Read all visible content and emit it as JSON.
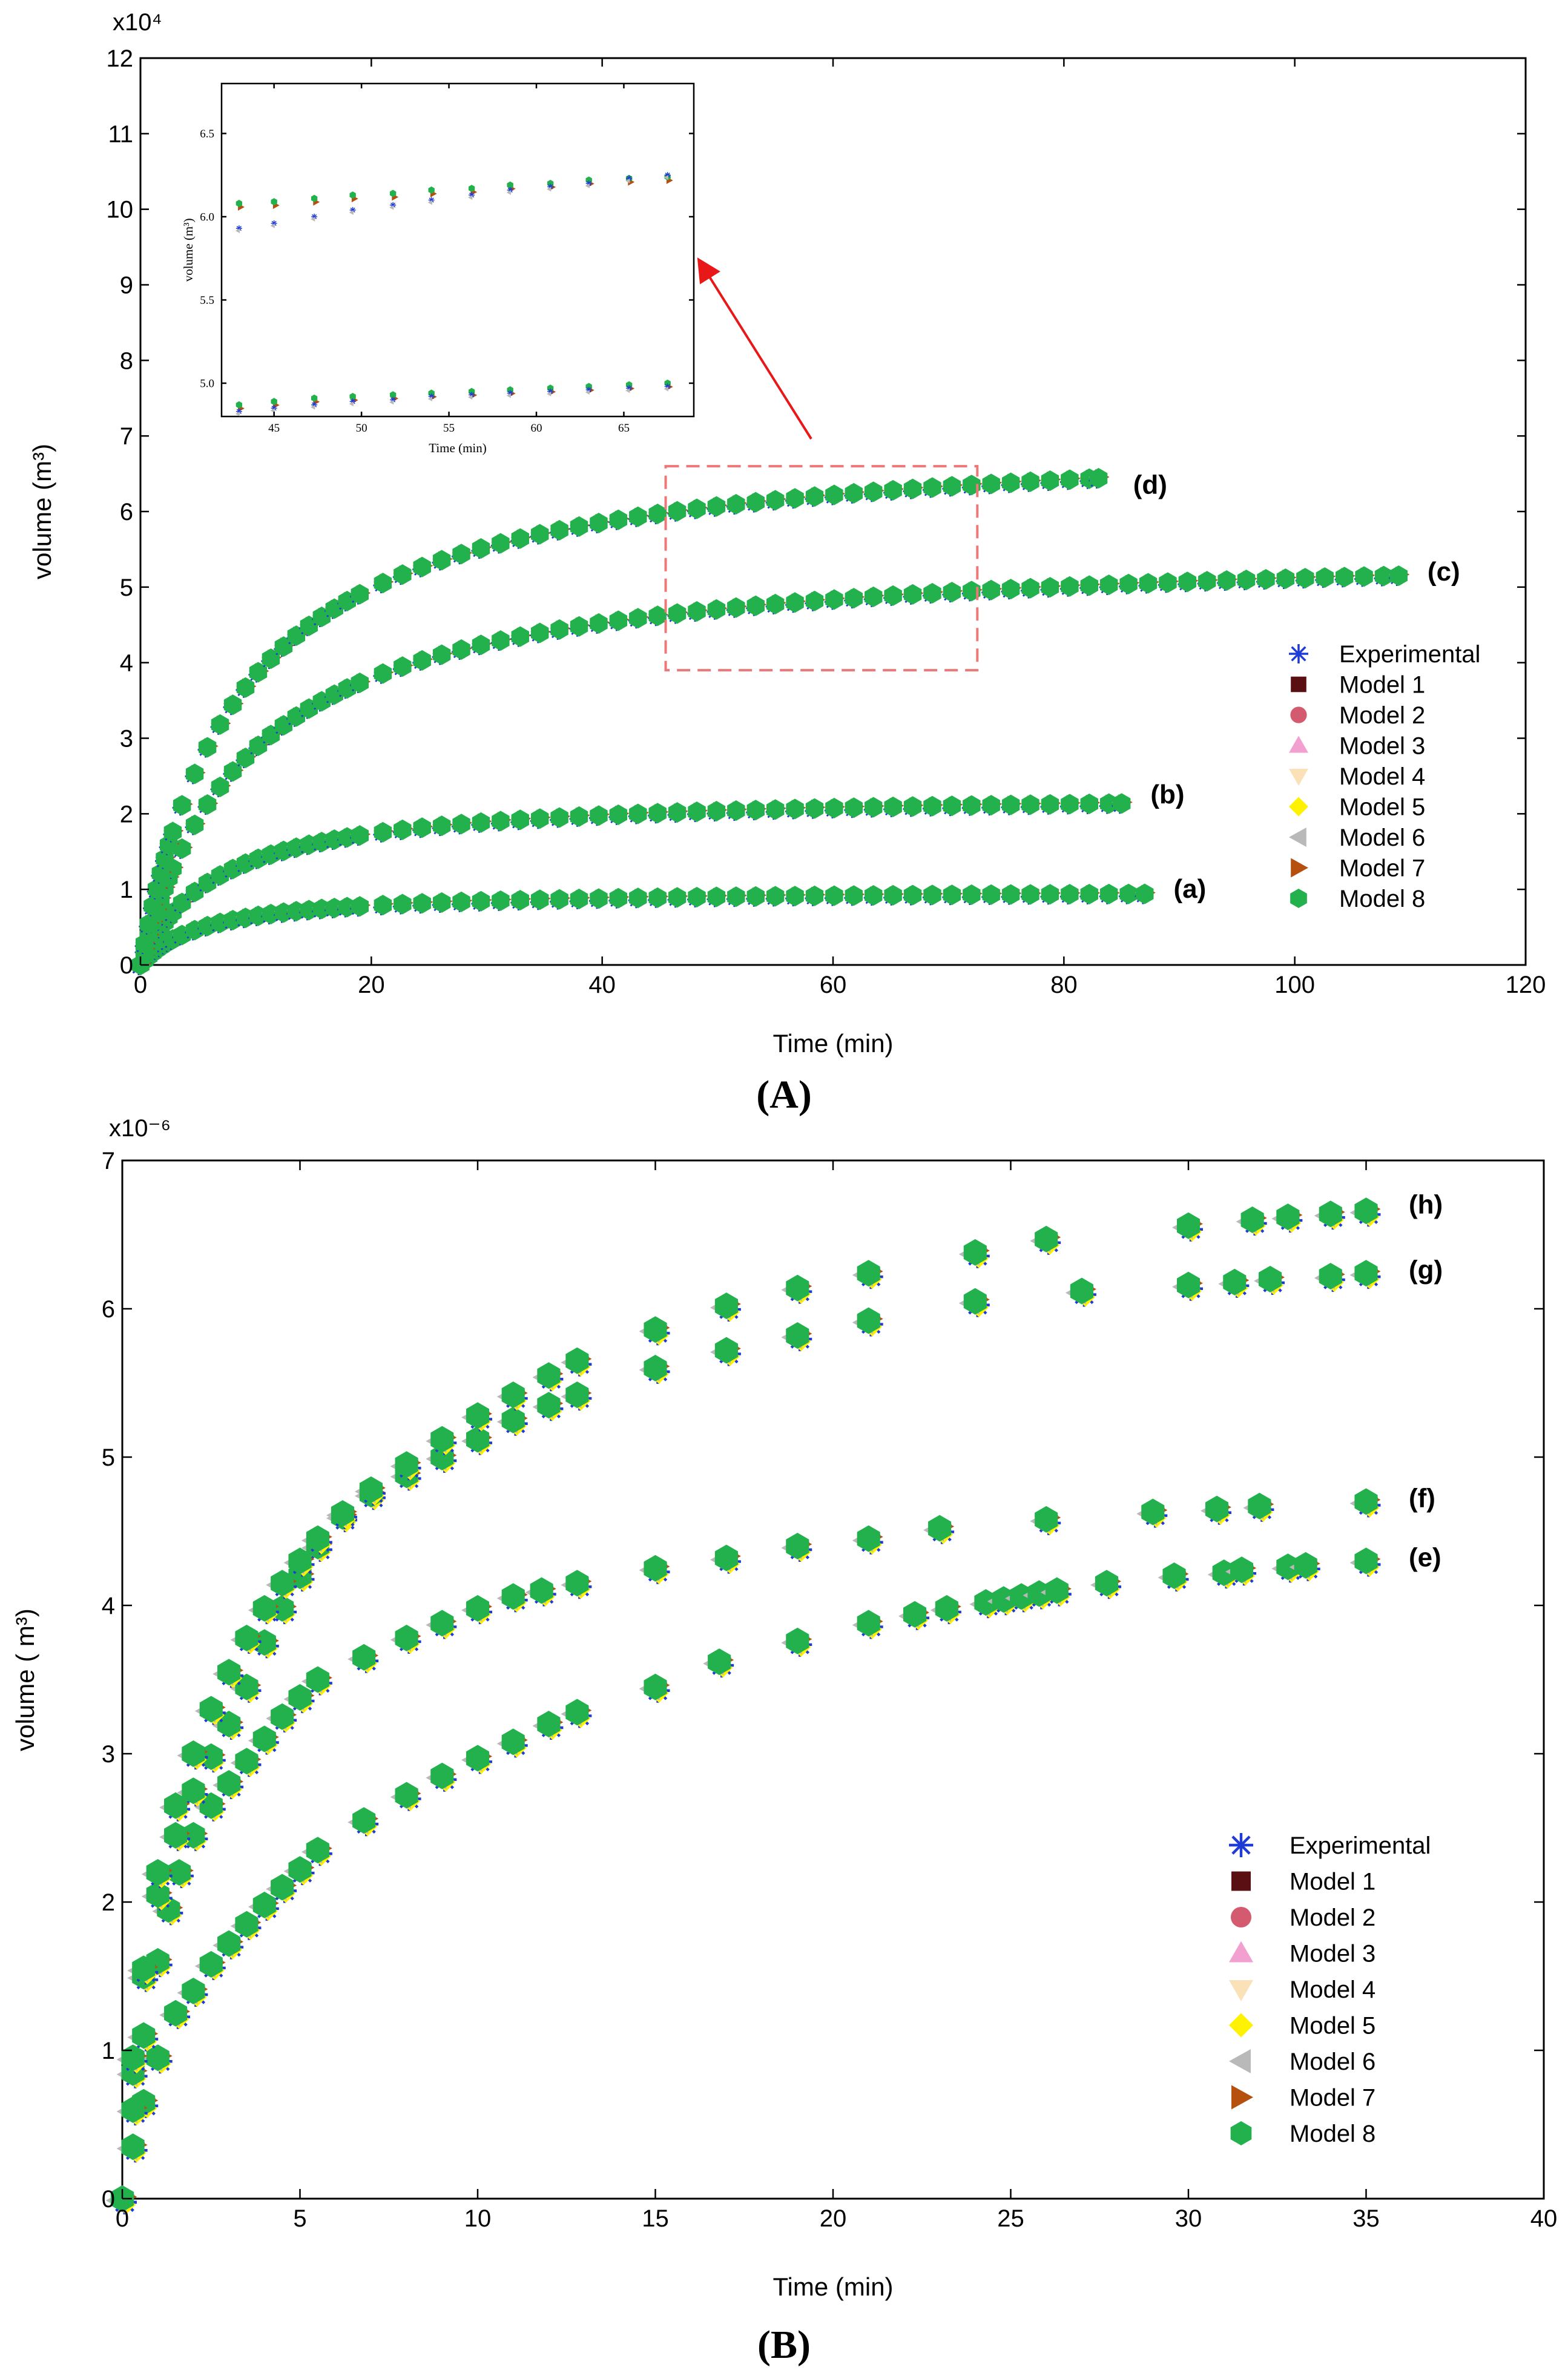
{
  "colors": {
    "experimental": "#1f3bd6",
    "model1": "#5a0f12",
    "model2": "#d45a70",
    "model3": "#f2a0cf",
    "model4": "#fbe1b8",
    "model5": "#fff200",
    "model6": "#b9b9b9",
    "model7": "#b5500f",
    "model8": "#22b14c",
    "zoom_box": "#ee7777",
    "arrow": "#e81818"
  },
  "panels": [
    {
      "panel_label": "(A)",
      "chart_data": {
        "type": "scatter",
        "xlabel": "Time (min)",
        "ylabel": "volume (m³)",
        "y_multiplier": "x10⁴",
        "xlim": [
          0,
          120
        ],
        "ylim": [
          0,
          12
        ],
        "x_ticks": [
          "0",
          "20",
          "40",
          "60",
          "80",
          "100",
          "120"
        ],
        "y_ticks": [
          "0",
          "1",
          "2",
          "3",
          "4",
          "5",
          "6",
          "7",
          "8",
          "9",
          "10",
          "11",
          "12"
        ],
        "legend_position": "right",
        "series_names": [
          "Experimental",
          "Model 1",
          "Model 2",
          "Model 3",
          "Model 4",
          "Model 5",
          "Model 6",
          "Model 7",
          "Model 8"
        ],
        "curves": [
          {
            "label": "(a)",
            "plateau": 1.0,
            "half_time": 5.5,
            "x_max": 87,
            "label_x": 89.5,
            "label_y": 1.0
          },
          {
            "label": "(b)",
            "plateau": 2.3,
            "half_time": 6.5,
            "x_max": 85,
            "label_x": 87.5,
            "label_y": 2.25
          },
          {
            "label": "(c)",
            "plateau": 5.6,
            "half_time": 9.5,
            "x_max": 109,
            "label_x": 111.5,
            "label_y": 5.2
          },
          {
            "label": "(d)",
            "plateau": 7.1,
            "half_time": 8.5,
            "x_max": 83,
            "label_x": 86,
            "label_y": 6.35
          }
        ],
        "zoom_region": {
          "x_range": [
            45.5,
            72.5
          ],
          "y_range": [
            3.9,
            6.6
          ]
        },
        "inset": {
          "xlabel": "Time (min)",
          "ylabel": "volume (m³)",
          "xlim": [
            42,
            69
          ],
          "ylim": [
            4.8,
            6.8
          ],
          "x_ticks": [
            "45",
            "50",
            "55",
            "60",
            "65"
          ],
          "y_ticks": [
            "5.0",
            "5.5",
            "6.0",
            "6.5"
          ],
          "series": [
            {
              "name": "upper_model",
              "x": [
                43,
                45,
                47.3,
                49.5,
                51.8,
                54,
                56.3,
                58.5,
                60.8,
                63,
                65.3,
                67.5
              ],
              "values": [
                6.08,
                6.09,
                6.11,
                6.13,
                6.14,
                6.16,
                6.17,
                6.19,
                6.2,
                6.22,
                6.23,
                6.24
              ]
            },
            {
              "name": "upper_experimental",
              "x": [
                43,
                45,
                47.3,
                49.5,
                51.8,
                54,
                56.3,
                58.5,
                60.8,
                63,
                65.3,
                67.5
              ],
              "values": [
                5.93,
                5.96,
                6.0,
                6.04,
                6.07,
                6.1,
                6.13,
                6.16,
                6.18,
                6.2,
                6.23,
                6.25
              ]
            },
            {
              "name": "lower_model",
              "x": [
                43,
                45,
                47.3,
                49.5,
                51.8,
                54,
                56.3,
                58.5,
                60.8,
                63,
                65.3,
                67.5
              ],
              "values": [
                4.87,
                4.89,
                4.91,
                4.92,
                4.93,
                4.94,
                4.95,
                4.96,
                4.97,
                4.98,
                4.99,
                5.0
              ]
            },
            {
              "name": "lower_experimental",
              "x": [
                43,
                45,
                47.3,
                49.5,
                51.8,
                54,
                56.3,
                58.5,
                60.8,
                63,
                65.3,
                67.5
              ],
              "values": [
                4.83,
                4.85,
                4.87,
                4.89,
                4.9,
                4.92,
                4.93,
                4.94,
                4.95,
                4.96,
                4.97,
                4.98
              ]
            }
          ]
        }
      }
    },
    {
      "panel_label": "(B)",
      "chart_data": {
        "type": "scatter",
        "xlabel": "Time (min)",
        "ylabel": "volume ( m³)",
        "y_multiplier": "x10⁻⁶",
        "xlim": [
          0,
          40
        ],
        "ylim": [
          0,
          7
        ],
        "x_ticks": [
          "0",
          "5",
          "10",
          "15",
          "20",
          "25",
          "30",
          "35",
          "40"
        ],
        "y_ticks": [
          "0",
          "1",
          "2",
          "3",
          "4",
          "5",
          "6",
          "7"
        ],
        "legend_position": "right",
        "series_names": [
          "Experimental",
          "Model 1",
          "Model 2",
          "Model 3",
          "Model 4",
          "Model 5",
          "Model 6",
          "Model 7",
          "Model 8"
        ],
        "curves": [
          {
            "label": "(e)",
            "x": [
              0,
              0.3,
              0.6,
              1,
              1.5,
              2,
              2.5,
              3,
              3.5,
              4,
              4.5,
              5,
              5.5,
              6.8,
              8,
              9,
              10,
              11,
              12,
              12.8,
              15,
              16.8,
              19,
              21,
              22.3,
              23.2,
              24.3,
              24.8,
              25.3,
              25.8,
              26.3,
              27.7,
              29.6,
              31,
              31.5,
              32.8,
              33.3,
              35
            ],
            "values": [
              0,
              0.35,
              0.65,
              0.95,
              1.25,
              1.4,
              1.58,
              1.72,
              1.85,
              1.98,
              2.1,
              2.22,
              2.35,
              2.55,
              2.72,
              2.85,
              2.97,
              3.08,
              3.2,
              3.28,
              3.45,
              3.62,
              3.76,
              3.88,
              3.94,
              3.98,
              4.02,
              4.04,
              4.06,
              4.08,
              4.1,
              4.15,
              4.2,
              4.22,
              4.24,
              4.26,
              4.27,
              4.3
            ],
            "label_x": 36.2,
            "label_y": 4.32
          },
          {
            "label": "(f)",
            "x": [
              0,
              0.3,
              0.6,
              1,
              1.3,
              1.6,
              2,
              2.5,
              3,
              3.5,
              4,
              4.5,
              5,
              5.5,
              6.8,
              8,
              9,
              10,
              11,
              11.8,
              12.8,
              15,
              17,
              19,
              21,
              23,
              26,
              29,
              30.8,
              32,
              35
            ],
            "values": [
              0,
              0.6,
              1.1,
              1.6,
              1.95,
              2.2,
              2.45,
              2.65,
              2.8,
              2.95,
              3.1,
              3.25,
              3.38,
              3.5,
              3.65,
              3.78,
              3.88,
              3.98,
              4.06,
              4.1,
              4.15,
              4.25,
              4.32,
              4.4,
              4.45,
              4.52,
              4.58,
              4.63,
              4.65,
              4.67,
              4.7
            ],
            "label_x": 36.2,
            "label_y": 4.72
          },
          {
            "label": "(g)",
            "x": [
              0,
              0.3,
              0.6,
              1,
              1.5,
              2,
              2.5,
              3,
              3.5,
              4,
              4.5,
              5,
              5.5,
              6.2,
              7,
              8,
              9,
              10,
              11,
              12,
              12.8,
              15,
              17,
              19,
              21,
              24,
              27,
              30,
              31.3,
              32.3,
              34,
              35
            ],
            "values": [
              0,
              0.85,
              1.5,
              2.05,
              2.45,
              2.75,
              2.98,
              3.2,
              3.45,
              3.75,
              3.98,
              4.2,
              4.4,
              4.6,
              4.75,
              4.88,
              5.0,
              5.12,
              5.25,
              5.35,
              5.42,
              5.6,
              5.72,
              5.82,
              5.92,
              6.05,
              6.12,
              6.16,
              6.18,
              6.2,
              6.22,
              6.24
            ],
            "label_x": 36.2,
            "label_y": 6.26
          },
          {
            "label": "(h)",
            "x": [
              0,
              0.3,
              0.6,
              1,
              1.5,
              2,
              2.5,
              3,
              3.5,
              4,
              4.5,
              5,
              5.5,
              6.2,
              7,
              8,
              9,
              10,
              11,
              12,
              12.8,
              15,
              17,
              19,
              21,
              24,
              26,
              30,
              31.8,
              32.8,
              34,
              35
            ],
            "values": [
              0,
              0.95,
              1.55,
              2.2,
              2.65,
              3.0,
              3.3,
              3.55,
              3.78,
              3.98,
              4.15,
              4.3,
              4.45,
              4.62,
              4.78,
              4.95,
              5.12,
              5.28,
              5.42,
              5.55,
              5.65,
              5.86,
              6.02,
              6.14,
              6.24,
              6.38,
              6.47,
              6.56,
              6.6,
              6.62,
              6.64,
              6.66
            ],
            "label_x": 36.2,
            "label_y": 6.7
          }
        ]
      }
    }
  ]
}
